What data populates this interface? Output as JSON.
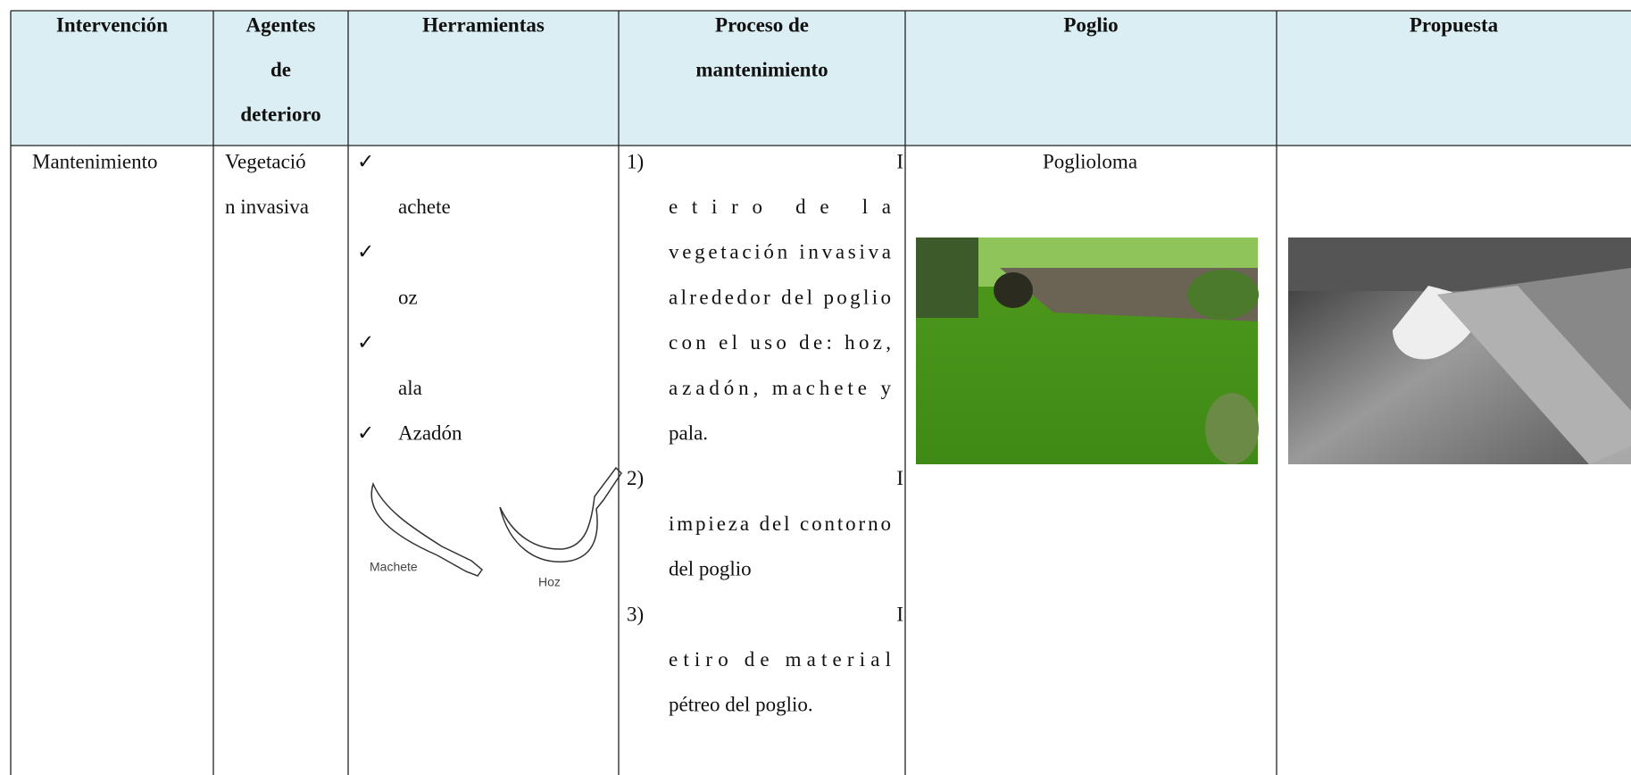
{
  "table": {
    "header": [
      [
        "Intervención"
      ],
      [
        "Agentes",
        "de",
        "deterioro"
      ],
      [
        "Herramientas"
      ],
      [
        "Proceso de",
        "mantenimiento"
      ],
      [
        "Poglio"
      ],
      [
        "Propuesta"
      ]
    ],
    "row": {
      "intervencion": [
        "Mantenimiento"
      ],
      "agentes": [
        "Vegetació",
        "n invasiva"
      ],
      "herramientas": {
        "checks": [
          "✓",
          "✓",
          "✓",
          "✓"
        ],
        "items": [
          "achete",
          "oz",
          "ala",
          "Azadón"
        ],
        "figure_labels": [
          "Machete",
          "Hoz"
        ]
      },
      "proceso": {
        "numbers": [
          "1)",
          "2)",
          "3)"
        ],
        "fragments": [
          "I",
          "I",
          "I"
        ],
        "lines": [
          "etiro de la",
          "vegetación invasiva",
          "alrededor del poglio",
          "con el uso de: hoz,",
          "azadón, machete y",
          "pala.",
          "impieza del contorno",
          "del poglio",
          "etiro de material",
          "pétreo del poglio."
        ]
      },
      "poglio": [
        "Poglioloma"
      ]
    }
  }
}
